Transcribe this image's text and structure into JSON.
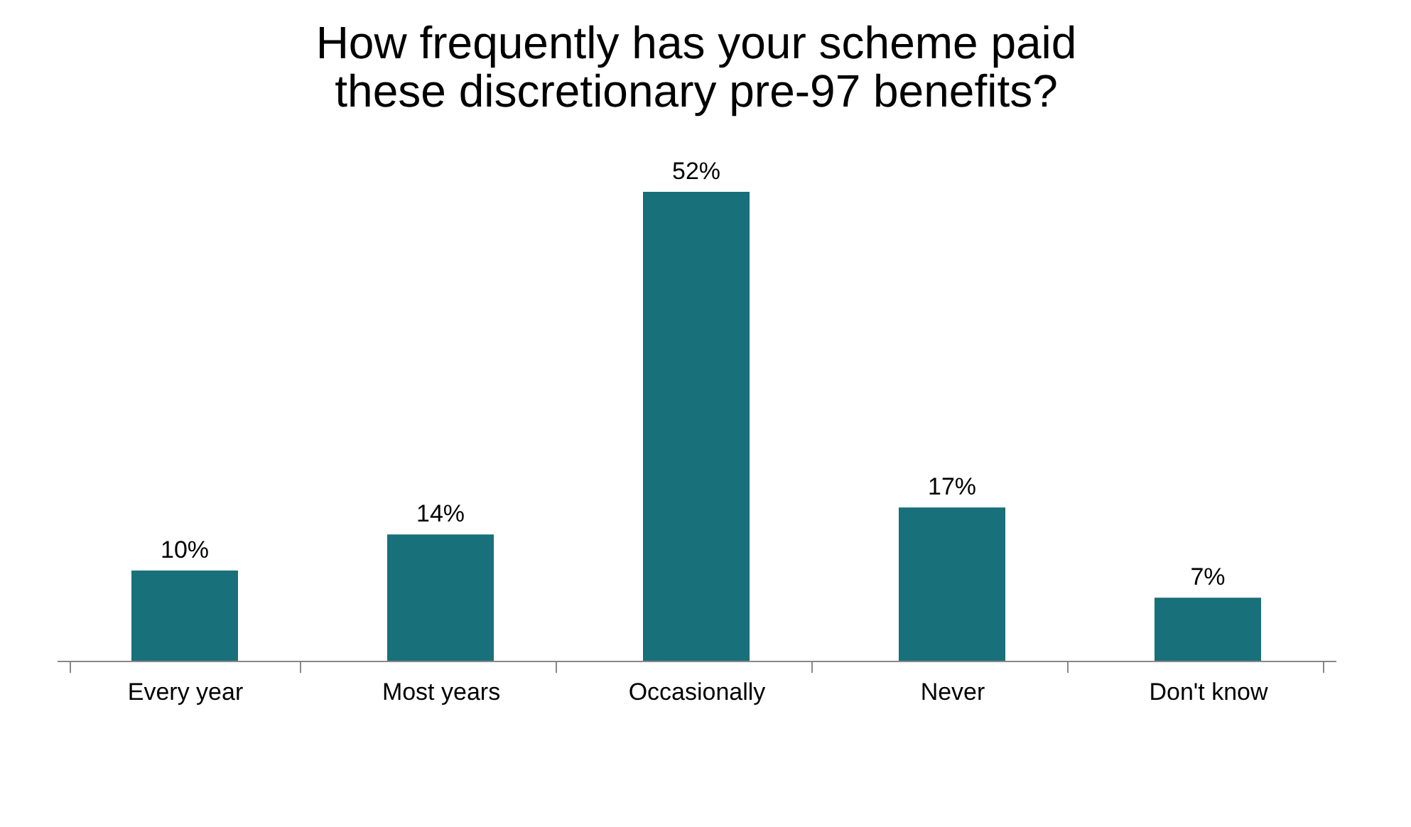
{
  "chart_data": {
    "type": "bar",
    "title": "How frequently has your scheme paid\nthese discretionary pre-97 benefits?",
    "categories": [
      "Every year",
      "Most years",
      "Occasionally",
      "Never",
      "Don't know"
    ],
    "values": [
      10,
      14,
      52,
      17,
      7
    ],
    "color": "#17707a",
    "data_labels": true,
    "value_labels": [
      "10%",
      "14%",
      "52%",
      "17%",
      "7%"
    ],
    "grid": false
  }
}
